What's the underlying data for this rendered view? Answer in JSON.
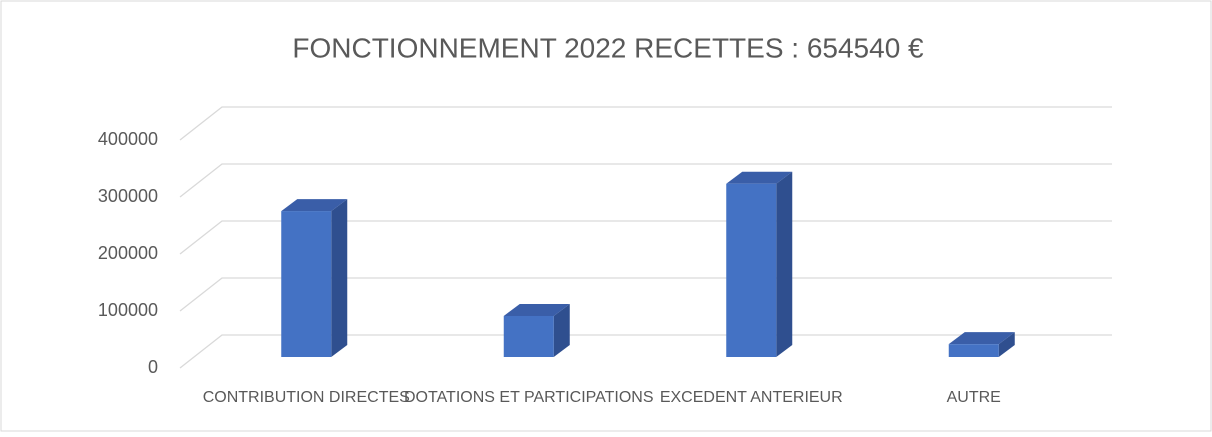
{
  "chart_data": {
    "type": "bar3d",
    "title": "FONCTIONNEMENT 2022 RECETTES : 654540 €",
    "categories": [
      "CONTRIBUTION DIRECTES",
      "DOTATIONS ET PARTICIPATIONS",
      "EXCEDENT ANTERIEUR",
      "AUTRE"
    ],
    "values": [
      256000,
      72000,
      304000,
      22540
    ],
    "color": "#4472c4",
    "ylim": [
      0,
      400000
    ],
    "yticks": [
      0,
      100000,
      200000,
      300000,
      400000
    ],
    "grid": true
  }
}
